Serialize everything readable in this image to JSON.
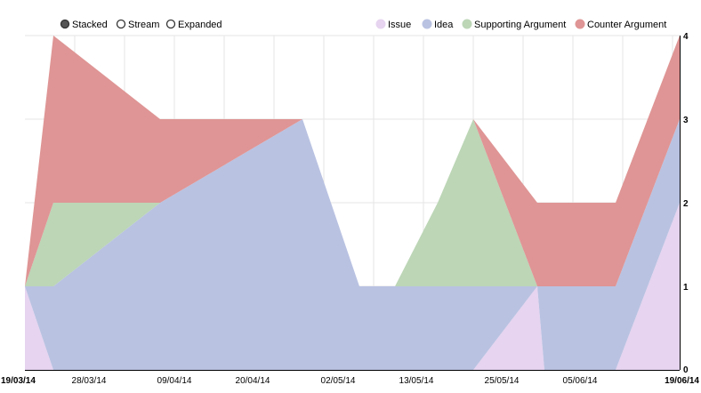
{
  "controls": [
    {
      "label": "Stacked",
      "selected": true
    },
    {
      "label": "Stream",
      "selected": false
    },
    {
      "label": "Expanded",
      "selected": false
    }
  ],
  "chart_data": {
    "type": "area",
    "stacked": true,
    "x": [
      "19/03/14",
      "23/03/14",
      "07/04/14",
      "27/04/14",
      "05/05/14",
      "10/05/14",
      "16/05/14",
      "21/05/14",
      "30/05/14",
      "31/05/14",
      "10/06/14",
      "19/06/14"
    ],
    "x_ticks": [
      "19/03/14",
      "28/03/14",
      "09/04/14",
      "20/04/14",
      "02/05/14",
      "13/05/14",
      "25/05/14",
      "05/06/14",
      "19/06/14"
    ],
    "x_ticks_bold": [
      "19/03/14",
      "19/06/14"
    ],
    "y_ticks": [
      0,
      1,
      2,
      3,
      4
    ],
    "ylim": [
      0,
      4
    ],
    "grid": true,
    "legend_position": "top-right",
    "series": [
      {
        "name": "Issue",
        "color": "#e6d4f0",
        "values": [
          1,
          0,
          0,
          0,
          0,
          0,
          0,
          0,
          1,
          0,
          0,
          2
        ]
      },
      {
        "name": "Idea",
        "color": "#b9c2e1",
        "values": [
          0,
          1,
          2,
          3,
          1,
          1,
          1,
          1,
          0,
          1,
          1,
          1
        ]
      },
      {
        "name": "Supporting Argument",
        "color": "#bcd6b6",
        "values": [
          0,
          1,
          0,
          0,
          0,
          0,
          1,
          2,
          0,
          0,
          0,
          0
        ]
      },
      {
        "name": "Counter Argument",
        "color": "#df9595",
        "values": [
          0,
          2,
          1,
          0,
          0,
          0,
          0,
          0,
          1,
          1,
          1,
          1
        ]
      }
    ]
  }
}
